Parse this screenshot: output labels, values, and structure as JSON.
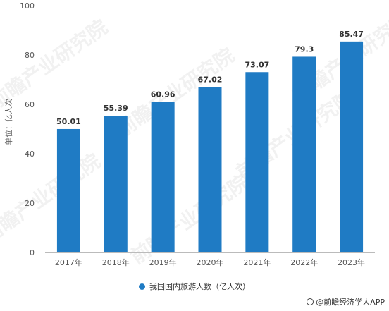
{
  "chart_data": {
    "type": "bar",
    "categories": [
      "2017年",
      "2018年",
      "2019年",
      "2020年",
      "2021年",
      "2022年",
      "2023年"
    ],
    "values": [
      50.01,
      55.39,
      60.96,
      67.02,
      73.07,
      79.3,
      85.47
    ],
    "value_labels": [
      "50.01",
      "55.39",
      "60.96",
      "67.02",
      "73.07",
      "79.3",
      "85.47"
    ],
    "ylabel": "单位：亿人次",
    "ylim": [
      0,
      100
    ],
    "yticks": [
      0,
      20,
      40,
      60,
      80,
      100
    ],
    "grid": false,
    "legend_position": "bottom",
    "series": [
      {
        "name": "我国国内旅游人数（亿人次）"
      }
    ],
    "bar_color": "#1f7bc4"
  },
  "watermark": "前瞻产业研究院",
  "source": "@前瞻经济学人APP"
}
